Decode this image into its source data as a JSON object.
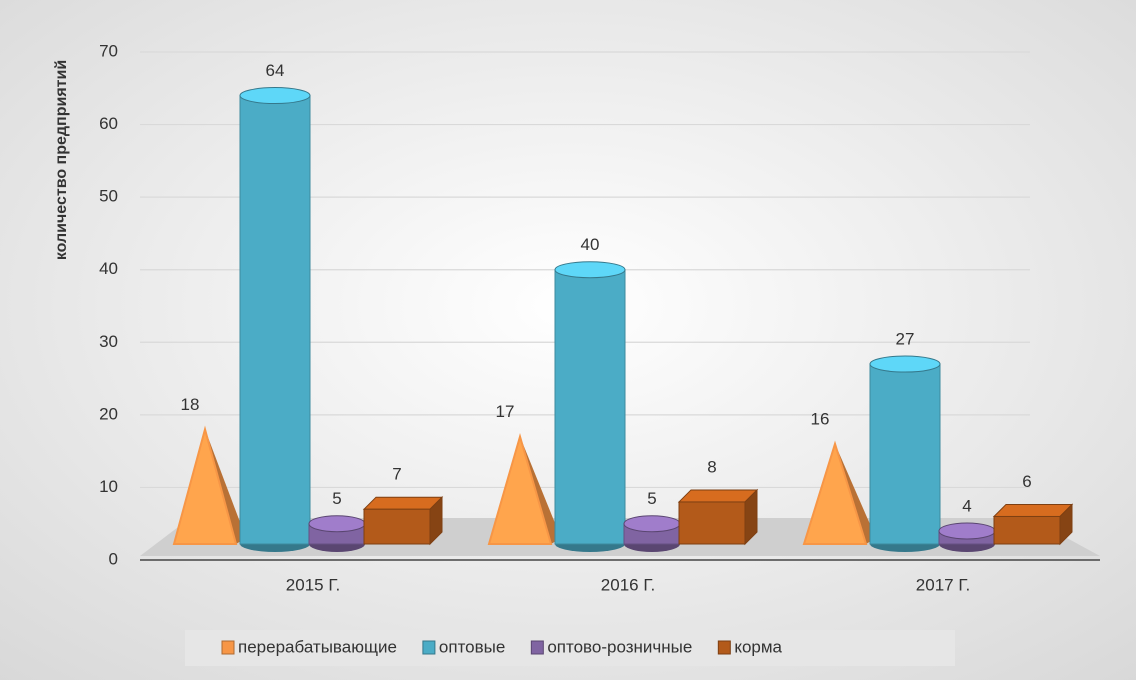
{
  "chart_data": {
    "type": "bar3d",
    "y_label": "количество предприятий",
    "categories": [
      "2015 Г.",
      "2016 Г.",
      "2017 Г."
    ],
    "series": [
      {
        "name": "перерабатывающие",
        "color": "#f79646",
        "shape": "pyramid",
        "values": [
          18,
          17,
          16
        ]
      },
      {
        "name": "оптовые",
        "color": "#4bacc6",
        "shape": "cylinder",
        "values": [
          64,
          40,
          27
        ]
      },
      {
        "name": "оптово-розничные",
        "color": "#8064a2",
        "shape": "cylinder",
        "values": [
          5,
          5,
          4
        ]
      },
      {
        "name": "корма",
        "color": "#b35a1a",
        "shape": "box",
        "values": [
          7,
          8,
          6
        ]
      }
    ],
    "ylim": [
      0,
      70
    ],
    "yticks": [
      0,
      10,
      20,
      30,
      40,
      50,
      60,
      70
    ],
    "grid": true,
    "legend": "bottom"
  }
}
